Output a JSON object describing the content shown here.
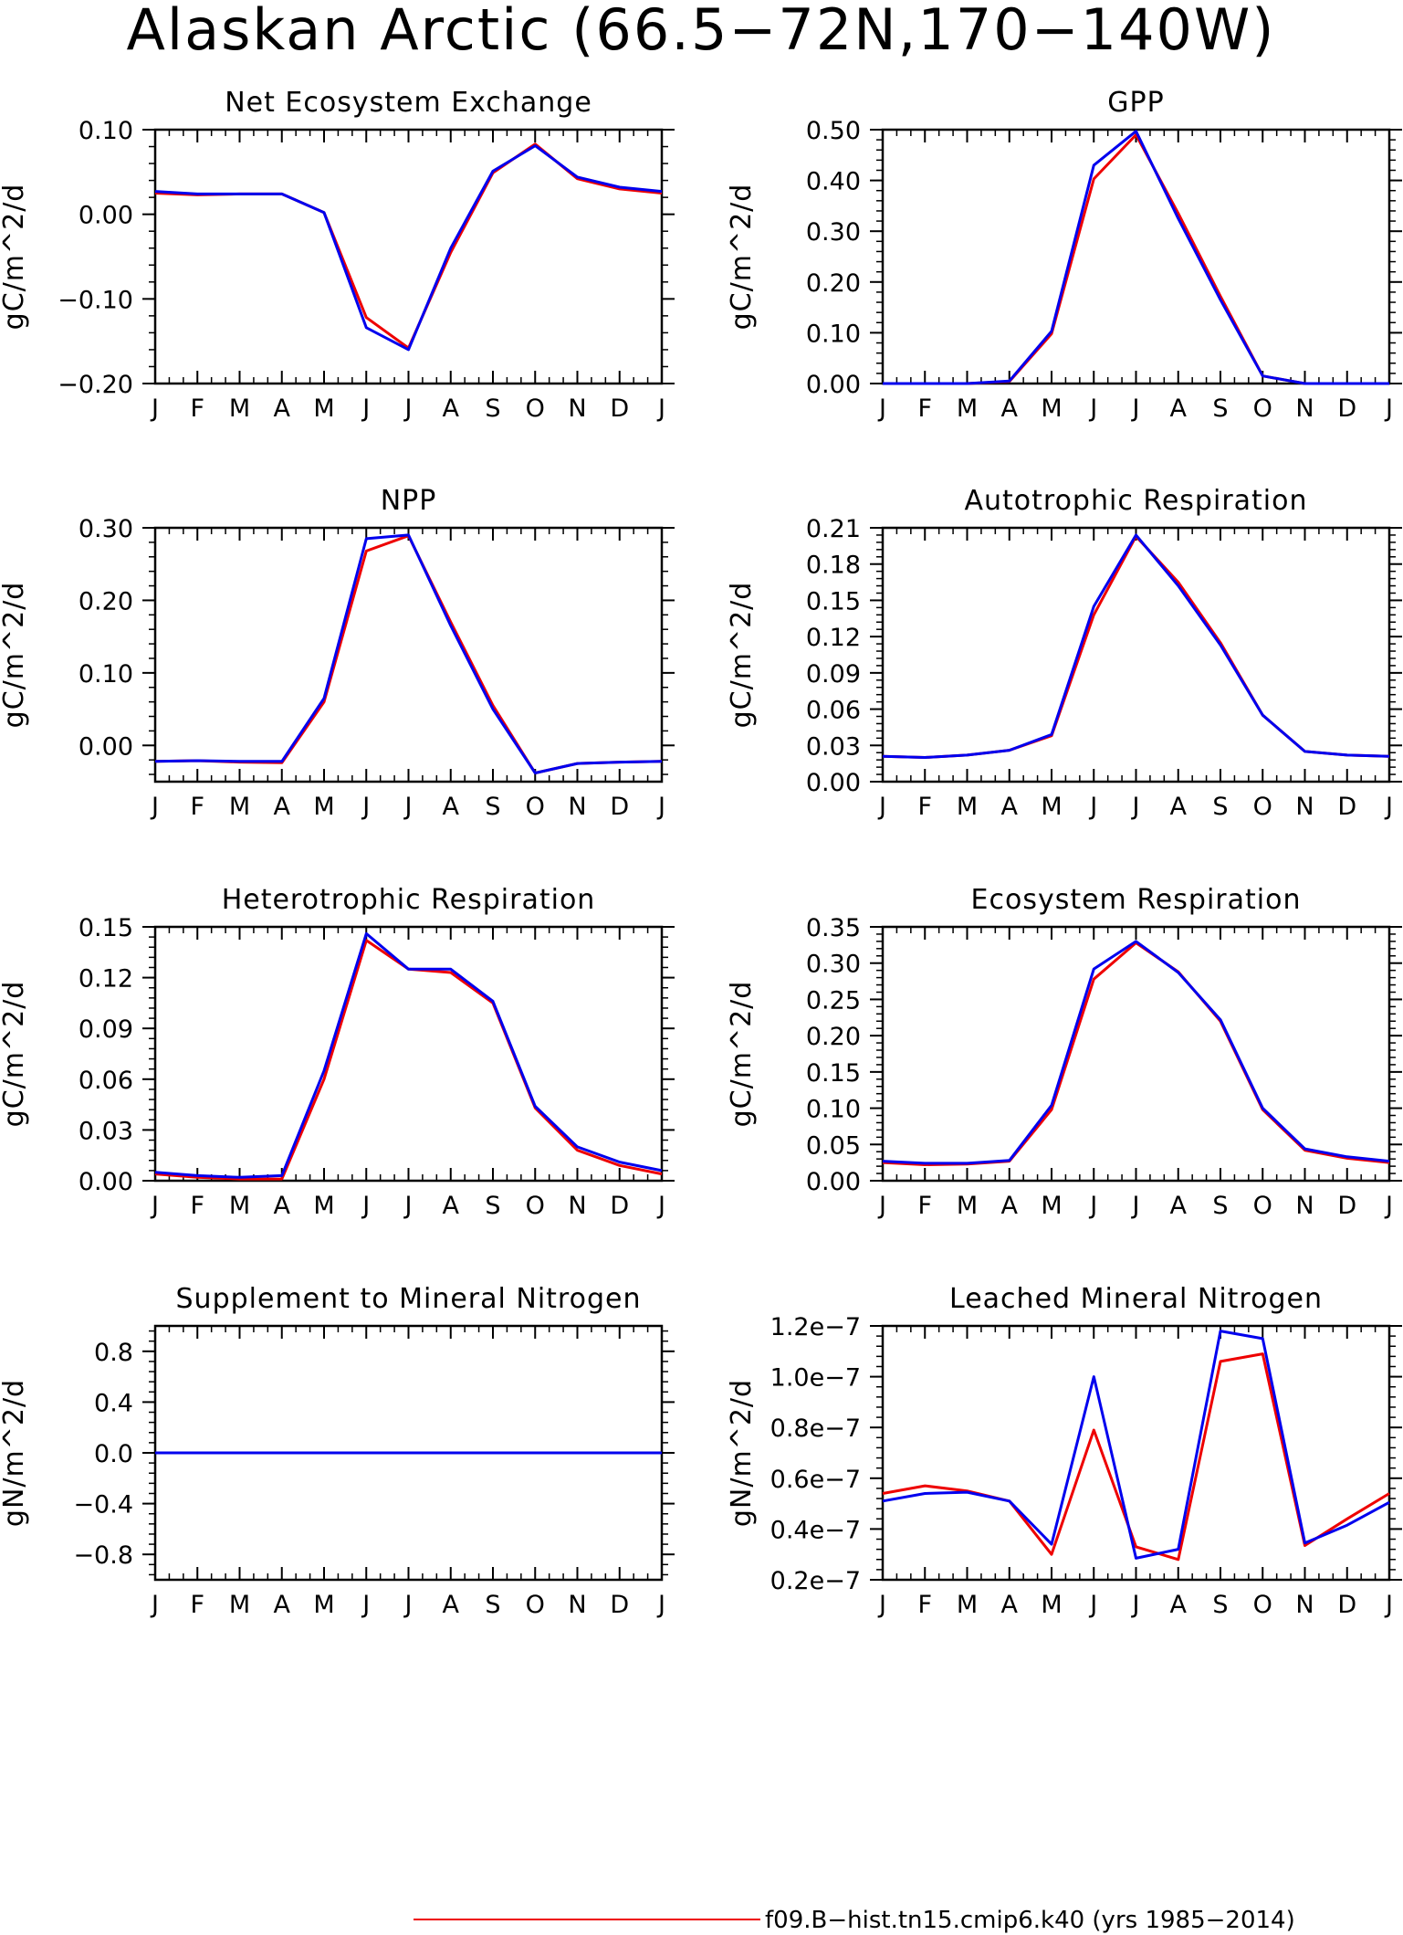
{
  "title": "Alaskan Arctic (66.5−72N,170−140W)",
  "legend": {
    "red_label": "f09.B−hist.tn15.cmip6.k40 (yrs 1985−2014)",
    "red_color": "#ee0000",
    "blue_color": "#0000ee"
  },
  "chart_data": [
    {
      "type": "line",
      "title": "Net Ecosystem Exchange",
      "ylabel": "gC/m^2/d",
      "categories": [
        "J",
        "F",
        "M",
        "A",
        "M",
        "J",
        "J",
        "A",
        "S",
        "O",
        "N",
        "D",
        "J"
      ],
      "ylim": [
        -0.2,
        0.1
      ],
      "yticks": [
        -0.2,
        -0.1,
        0.0,
        0.1
      ],
      "ytick_labels": [
        "−0.20",
        "−0.10",
        "0.00",
        "0.10"
      ],
      "series": [
        {
          "color": "#ee0000",
          "values": [
            0.025,
            0.023,
            0.024,
            0.024,
            0.002,
            -0.122,
            -0.158,
            -0.045,
            0.049,
            0.083,
            0.042,
            0.03,
            0.025
          ]
        },
        {
          "color": "#0000ee",
          "values": [
            0.027,
            0.024,
            0.024,
            0.024,
            0.002,
            -0.134,
            -0.16,
            -0.04,
            0.051,
            0.081,
            0.044,
            0.032,
            0.027
          ]
        }
      ]
    },
    {
      "type": "line",
      "title": "GPP",
      "ylabel": "gC/m^2/d",
      "categories": [
        "J",
        "F",
        "M",
        "A",
        "M",
        "J",
        "J",
        "A",
        "S",
        "O",
        "N",
        "D",
        "J"
      ],
      "ylim": [
        0.0,
        0.5
      ],
      "yticks": [
        0.0,
        0.1,
        0.2,
        0.3,
        0.4,
        0.5
      ],
      "ytick_labels": [
        "0.00",
        "0.10",
        "0.20",
        "0.30",
        "0.40",
        "0.50"
      ],
      "series": [
        {
          "color": "#ee0000",
          "values": [
            0.0,
            0.0,
            0.0,
            0.004,
            0.098,
            0.403,
            0.49,
            0.335,
            0.172,
            0.015,
            0.0,
            0.0,
            0.0
          ]
        },
        {
          "color": "#0000ee",
          "values": [
            0.0,
            0.0,
            0.0,
            0.005,
            0.103,
            0.43,
            0.497,
            0.325,
            0.165,
            0.015,
            0.0,
            0.0,
            0.0
          ]
        }
      ]
    },
    {
      "type": "line",
      "title": "NPP",
      "ylabel": "gC/m^2/d",
      "categories": [
        "J",
        "F",
        "M",
        "A",
        "M",
        "J",
        "J",
        "A",
        "S",
        "O",
        "N",
        "D",
        "J"
      ],
      "ylim": [
        -0.05,
        0.3
      ],
      "yticks": [
        0.0,
        0.1,
        0.2,
        0.3
      ],
      "ytick_labels": [
        "0.00",
        "0.10",
        "0.20",
        "0.30"
      ],
      "series": [
        {
          "color": "#ee0000",
          "values": [
            -0.022,
            -0.021,
            -0.023,
            -0.024,
            0.06,
            0.268,
            0.289,
            0.17,
            0.055,
            -0.038,
            -0.025,
            -0.023,
            -0.022
          ]
        },
        {
          "color": "#0000ee",
          "values": [
            -0.022,
            -0.021,
            -0.022,
            -0.022,
            0.065,
            0.285,
            0.29,
            0.165,
            0.05,
            -0.038,
            -0.025,
            -0.023,
            -0.022
          ]
        }
      ]
    },
    {
      "type": "line",
      "title": "Autotrophic Respiration",
      "ylabel": "gC/m^2/d",
      "categories": [
        "J",
        "F",
        "M",
        "A",
        "M",
        "J",
        "J",
        "A",
        "S",
        "O",
        "N",
        "D",
        "J"
      ],
      "ylim": [
        0.0,
        0.21
      ],
      "yticks": [
        0.0,
        0.03,
        0.06,
        0.09,
        0.12,
        0.15,
        0.18,
        0.21
      ],
      "ytick_labels": [
        "0.00",
        "0.03",
        "0.06",
        "0.09",
        "0.12",
        "0.15",
        "0.18",
        "0.21"
      ],
      "series": [
        {
          "color": "#ee0000",
          "values": [
            0.021,
            0.02,
            0.022,
            0.026,
            0.038,
            0.138,
            0.203,
            0.165,
            0.115,
            0.055,
            0.025,
            0.022,
            0.021
          ]
        },
        {
          "color": "#0000ee",
          "values": [
            0.021,
            0.02,
            0.022,
            0.026,
            0.039,
            0.145,
            0.204,
            0.162,
            0.113,
            0.055,
            0.025,
            0.022,
            0.021
          ]
        }
      ]
    },
    {
      "type": "line",
      "title": "Heterotrophic Respiration",
      "ylabel": "gC/m^2/d",
      "categories": [
        "J",
        "F",
        "M",
        "A",
        "M",
        "J",
        "J",
        "A",
        "S",
        "O",
        "N",
        "D",
        "J"
      ],
      "ylim": [
        0.0,
        0.15
      ],
      "yticks": [
        0.0,
        0.03,
        0.06,
        0.09,
        0.12,
        0.15
      ],
      "ytick_labels": [
        "0.00",
        "0.03",
        "0.06",
        "0.09",
        "0.12",
        "0.15"
      ],
      "series": [
        {
          "color": "#ee0000",
          "values": [
            0.004,
            0.002,
            0.001,
            0.001,
            0.06,
            0.142,
            0.125,
            0.123,
            0.105,
            0.043,
            0.018,
            0.009,
            0.004
          ]
        },
        {
          "color": "#0000ee",
          "values": [
            0.005,
            0.003,
            0.002,
            0.003,
            0.065,
            0.146,
            0.125,
            0.125,
            0.106,
            0.044,
            0.02,
            0.011,
            0.006
          ]
        }
      ]
    },
    {
      "type": "line",
      "title": "Ecosystem Respiration",
      "ylabel": "gC/m^2/d",
      "categories": [
        "J",
        "F",
        "M",
        "A",
        "M",
        "J",
        "J",
        "A",
        "S",
        "O",
        "N",
        "D",
        "J"
      ],
      "ylim": [
        0.0,
        0.35
      ],
      "yticks": [
        0.0,
        0.05,
        0.1,
        0.15,
        0.2,
        0.25,
        0.3,
        0.35
      ],
      "ytick_labels": [
        "0.00",
        "0.05",
        "0.10",
        "0.15",
        "0.20",
        "0.25",
        "0.30",
        "0.35"
      ],
      "series": [
        {
          "color": "#ee0000",
          "values": [
            0.025,
            0.022,
            0.023,
            0.027,
            0.098,
            0.278,
            0.328,
            0.288,
            0.22,
            0.098,
            0.042,
            0.031,
            0.025
          ]
        },
        {
          "color": "#0000ee",
          "values": [
            0.027,
            0.024,
            0.024,
            0.028,
            0.104,
            0.292,
            0.33,
            0.287,
            0.222,
            0.1,
            0.044,
            0.033,
            0.027
          ]
        }
      ]
    },
    {
      "type": "line",
      "title": "Supplement to Mineral Nitrogen",
      "ylabel": "gN/m^2/d",
      "categories": [
        "J",
        "F",
        "M",
        "A",
        "M",
        "J",
        "J",
        "A",
        "S",
        "O",
        "N",
        "D",
        "J"
      ],
      "ylim": [
        -1.0,
        1.0
      ],
      "yticks": [
        -0.8,
        -0.4,
        0.0,
        0.4,
        0.8
      ],
      "ytick_labels": [
        "−0.8",
        "−0.4",
        "0.0",
        "0.4",
        "0.8"
      ],
      "series": [
        {
          "color": "#ee0000",
          "values": [
            0,
            0,
            0,
            0,
            0,
            0,
            0,
            0,
            0,
            0,
            0,
            0,
            0
          ]
        },
        {
          "color": "#0000ee",
          "values": [
            0,
            0,
            0,
            0,
            0,
            0,
            0,
            0,
            0,
            0,
            0,
            0,
            0
          ]
        }
      ]
    },
    {
      "type": "line",
      "title": "Leached Mineral Nitrogen",
      "ylabel": "gN/m^2/d",
      "categories": [
        "J",
        "F",
        "M",
        "A",
        "M",
        "J",
        "J",
        "A",
        "S",
        "O",
        "N",
        "D",
        "J"
      ],
      "ylim": [
        2e-08,
        1.2e-07
      ],
      "yticks": [
        2e-08,
        4e-08,
        6e-08,
        8e-08,
        1e-07,
        1.2e-07
      ],
      "ytick_labels": [
        "0.2e−7",
        "0.4e−7",
        "0.6e−7",
        "0.8e−7",
        "1.0e−7",
        "1.2e−7"
      ],
      "series": [
        {
          "color": "#ee0000",
          "values": [
            5.4e-08,
            5.7e-08,
            5.5e-08,
            5.1e-08,
            3e-08,
            7.9e-08,
            3.3e-08,
            2.8e-08,
            1.06e-07,
            1.09e-07,
            3.35e-08,
            4.4e-08,
            5.4e-08
          ]
        },
        {
          "color": "#0000ee",
          "values": [
            5.1e-08,
            5.4e-08,
            5.45e-08,
            5.1e-08,
            3.4e-08,
            1e-07,
            2.85e-08,
            3.2e-08,
            1.18e-07,
            1.15e-07,
            3.45e-08,
            4.15e-08,
            5.05e-08
          ]
        }
      ]
    }
  ]
}
